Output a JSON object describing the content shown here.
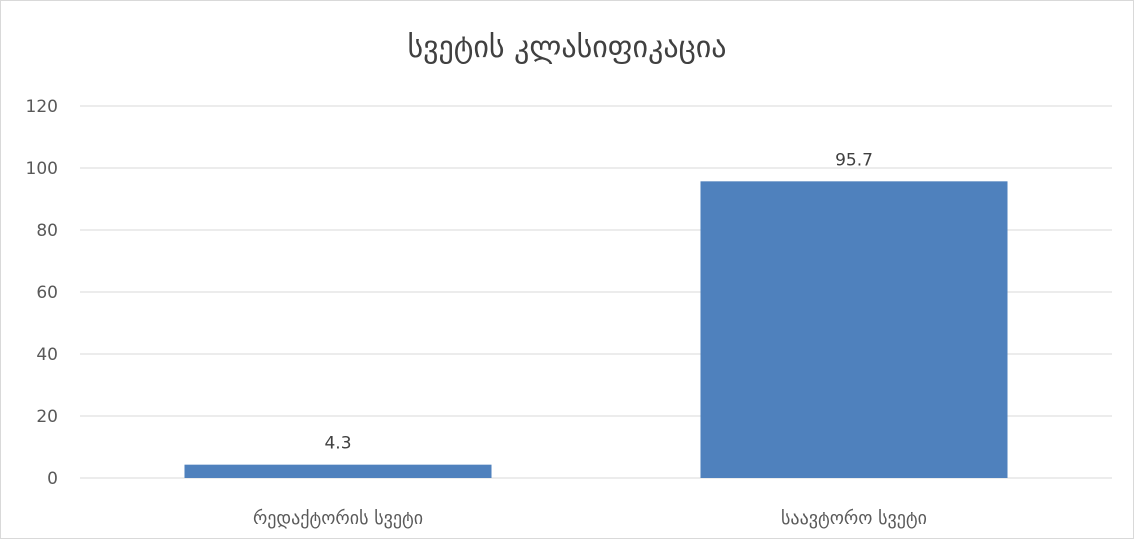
{
  "chart_data": {
    "type": "bar",
    "title": "სვეტის კლასიფიკაცია",
    "categories": [
      "რედაქტორის სვეტი",
      "საავტორო სვეტი"
    ],
    "values": [
      4.3,
      95.7
    ],
    "data_labels": [
      "4.3",
      "95.7"
    ],
    "y_ticks": [
      "0",
      "20",
      "40",
      "60",
      "80",
      "100",
      "120"
    ],
    "ylim": [
      0,
      120
    ],
    "xlabel": "",
    "ylabel": "",
    "grid": true,
    "legend": "none",
    "bar_color": "#4f81bd",
    "grid_color": "#d9d9d9"
  }
}
